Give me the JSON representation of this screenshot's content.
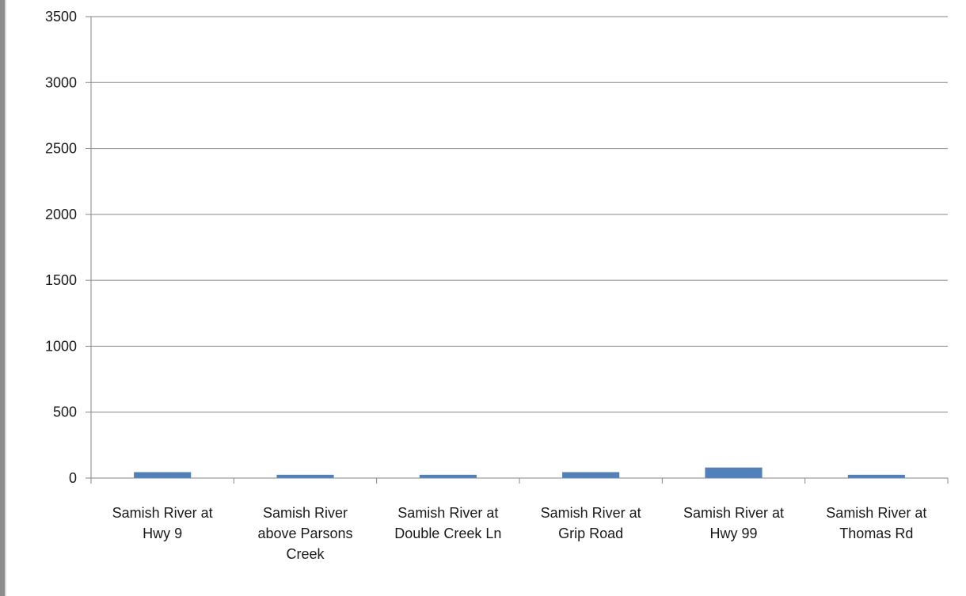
{
  "chart_data": {
    "type": "bar",
    "title": "",
    "xlabel": "",
    "ylabel": "",
    "categories": [
      [
        "Samish River at",
        "Hwy 9"
      ],
      [
        "Samish River",
        "above Parsons",
        "Creek"
      ],
      [
        "Samish River at",
        "Double Creek Ln"
      ],
      [
        "Samish River at",
        "Grip Road"
      ],
      [
        "Samish River at",
        "Hwy 99"
      ],
      [
        "Samish River at",
        "Thomas Rd"
      ]
    ],
    "values": [
      45,
      25,
      25,
      45,
      80,
      25
    ],
    "ylim": [
      0,
      3500
    ],
    "yticks": [
      0,
      500,
      1000,
      1500,
      2000,
      2500,
      3000,
      3500
    ],
    "grid": true,
    "legend": "none",
    "colors": {
      "bar": "#4f81bd",
      "grid": "#868686",
      "axis": "#868686"
    }
  }
}
